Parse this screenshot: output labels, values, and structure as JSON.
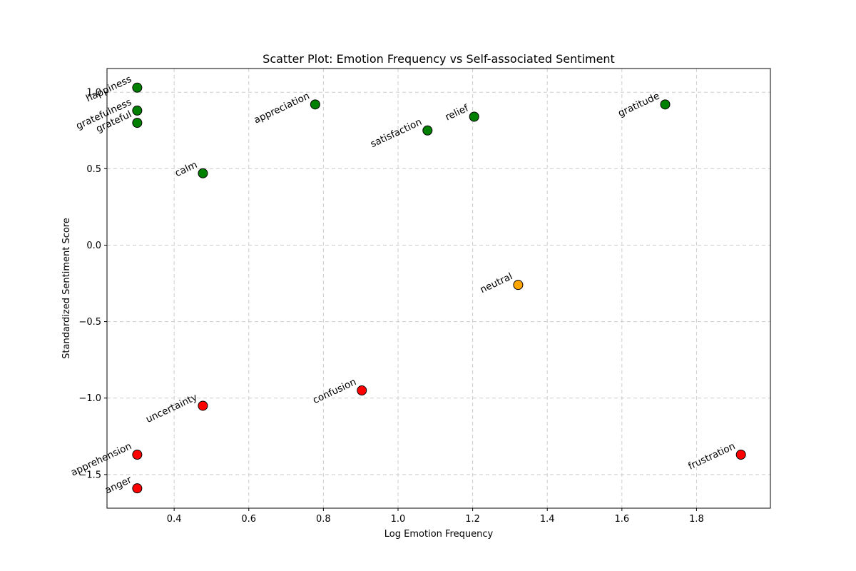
{
  "chart_data": {
    "type": "scatter",
    "title": "Scatter Plot: Emotion Frequency vs Self-associated Sentiment",
    "xlabel": "Log Emotion Frequency",
    "ylabel": "Standardized Sentiment Score",
    "xlim": [
      0.22,
      1.998
    ],
    "ylim": [
      -1.72,
      1.155
    ],
    "x_ticks": [
      "0.4",
      "0.6",
      "0.8",
      "1.0",
      "1.2",
      "1.4",
      "1.6",
      "1.8"
    ],
    "x_tick_values": [
      0.4,
      0.6,
      0.8,
      1.0,
      1.2,
      1.4,
      1.6,
      1.8
    ],
    "y_ticks": [
      "−1.5",
      "−1.0",
      "−0.5",
      "0.0",
      "0.5",
      "1.0"
    ],
    "y_tick_values": [
      -1.5,
      -1.0,
      -0.5,
      0.0,
      0.5,
      1.0
    ],
    "grid": true,
    "colors": {
      "positive": "#008000",
      "neutral": "#ffa500",
      "negative": "#ff0000",
      "edge": "#000000"
    },
    "points": [
      {
        "label": "happiness",
        "x": 0.301,
        "y": 1.03,
        "sentiment": "positive"
      },
      {
        "label": "gratefulness",
        "x": 0.301,
        "y": 0.88,
        "sentiment": "positive"
      },
      {
        "label": "grateful",
        "x": 0.301,
        "y": 0.8,
        "sentiment": "positive"
      },
      {
        "label": "calm",
        "x": 0.477,
        "y": 0.47,
        "sentiment": "positive"
      },
      {
        "label": "appreciation",
        "x": 0.778,
        "y": 0.92,
        "sentiment": "positive"
      },
      {
        "label": "satisfaction",
        "x": 1.079,
        "y": 0.75,
        "sentiment": "positive"
      },
      {
        "label": "relief",
        "x": 1.204,
        "y": 0.84,
        "sentiment": "positive"
      },
      {
        "label": "gratitude",
        "x": 1.716,
        "y": 0.92,
        "sentiment": "positive"
      },
      {
        "label": "neutral",
        "x": 1.322,
        "y": -0.26,
        "sentiment": "neutral"
      },
      {
        "label": "confusion",
        "x": 0.903,
        "y": -0.95,
        "sentiment": "negative"
      },
      {
        "label": "uncertainty",
        "x": 0.477,
        "y": -1.05,
        "sentiment": "negative"
      },
      {
        "label": "apprehension",
        "x": 0.301,
        "y": -1.37,
        "sentiment": "negative"
      },
      {
        "label": "anger",
        "x": 0.301,
        "y": -1.59,
        "sentiment": "negative"
      },
      {
        "label": "frustration",
        "x": 1.919,
        "y": -1.37,
        "sentiment": "negative"
      }
    ]
  }
}
